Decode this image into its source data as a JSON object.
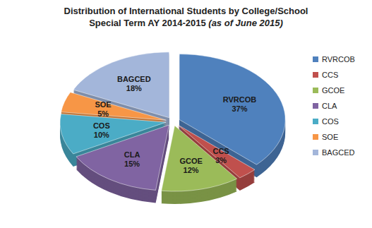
{
  "chart_data": {
    "type": "pie",
    "title": "Distribution of International Students by College/School",
    "subtitle": "Special Term AY 2014-2015 (as of June 2015)",
    "categories": [
      "RVRCOB",
      "CCS",
      "GCOE",
      "CLA",
      "COS",
      "SOE",
      "BAGCED"
    ],
    "values": [
      37,
      3,
      12,
      15,
      10,
      5,
      18
    ],
    "value_labels": [
      "37%",
      "3%",
      "12%",
      "15%",
      "10%",
      "5%",
      "18%"
    ],
    "colors": [
      "#4f81bd",
      "#c0504d",
      "#9bbb59",
      "#8064a2",
      "#4bacc6",
      "#f79646",
      "#a3b6da"
    ],
    "data_labels": true,
    "legend": "right"
  }
}
